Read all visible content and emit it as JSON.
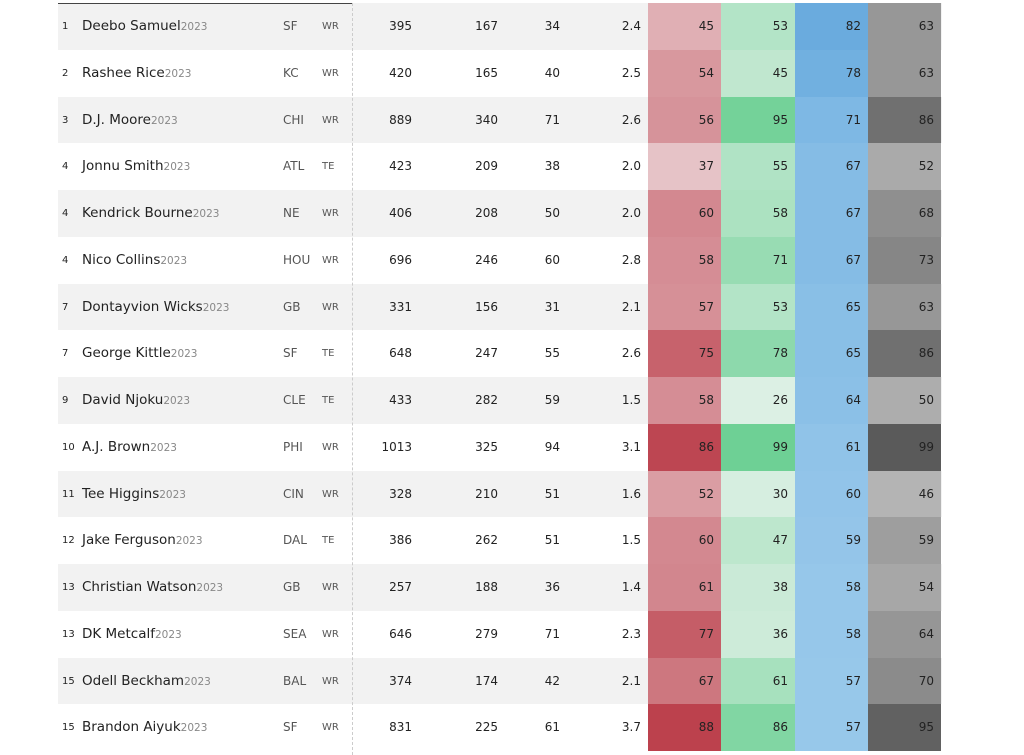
{
  "table": {
    "rows": [
      [
        "1",
        "Deebo Samuel",
        "2023",
        "SF",
        "WR",
        "395",
        "167",
        "34",
        "2.4",
        "45",
        "53",
        "82",
        "63"
      ],
      [
        "2",
        "Rashee Rice",
        "2023",
        "KC",
        "WR",
        "420",
        "165",
        "40",
        "2.5",
        "54",
        "45",
        "78",
        "63"
      ],
      [
        "3",
        "D.J. Moore",
        "2023",
        "CHI",
        "WR",
        "889",
        "340",
        "71",
        "2.6",
        "56",
        "95",
        "71",
        "86"
      ],
      [
        "4",
        "Jonnu Smith",
        "2023",
        "ATL",
        "TE",
        "423",
        "209",
        "38",
        "2.0",
        "37",
        "55",
        "67",
        "52"
      ],
      [
        "4",
        "Kendrick Bourne",
        "2023",
        "NE",
        "WR",
        "406",
        "208",
        "50",
        "2.0",
        "60",
        "58",
        "67",
        "68"
      ],
      [
        "4",
        "Nico Collins",
        "2023",
        "HOU",
        "WR",
        "696",
        "246",
        "60",
        "2.8",
        "58",
        "71",
        "67",
        "73"
      ],
      [
        "7",
        "Dontayvion Wicks",
        "2023",
        "GB",
        "WR",
        "331",
        "156",
        "31",
        "2.1",
        "57",
        "53",
        "65",
        "63"
      ],
      [
        "7",
        "George Kittle",
        "2023",
        "SF",
        "TE",
        "648",
        "247",
        "55",
        "2.6",
        "75",
        "78",
        "65",
        "86"
      ],
      [
        "9",
        "David Njoku",
        "2023",
        "CLE",
        "TE",
        "433",
        "282",
        "59",
        "1.5",
        "58",
        "26",
        "64",
        "50"
      ],
      [
        "10",
        "A.J. Brown",
        "2023",
        "PHI",
        "WR",
        "1013",
        "325",
        "94",
        "3.1",
        "86",
        "99",
        "61",
        "99"
      ],
      [
        "11",
        "Tee Higgins",
        "2023",
        "CIN",
        "WR",
        "328",
        "210",
        "51",
        "1.6",
        "52",
        "30",
        "60",
        "46"
      ],
      [
        "12",
        "Jake Ferguson",
        "2023",
        "DAL",
        "TE",
        "386",
        "262",
        "51",
        "1.5",
        "60",
        "47",
        "59",
        "59"
      ],
      [
        "13",
        "Christian Watson",
        "2023",
        "GB",
        "WR",
        "257",
        "188",
        "36",
        "1.4",
        "61",
        "38",
        "58",
        "54"
      ],
      [
        "13",
        "DK Metcalf",
        "2023",
        "SEA",
        "WR",
        "646",
        "279",
        "71",
        "2.3",
        "77",
        "36",
        "58",
        "64"
      ],
      [
        "15",
        "Odell Beckham",
        "2023",
        "BAL",
        "WR",
        "374",
        "174",
        "42",
        "2.1",
        "67",
        "61",
        "57",
        "70"
      ],
      [
        "15",
        "Brandon Aiyuk",
        "2023",
        "SF",
        "WR",
        "831",
        "225",
        "61",
        "3.7",
        "88",
        "86",
        "57",
        "95"
      ]
    ]
  }
}
